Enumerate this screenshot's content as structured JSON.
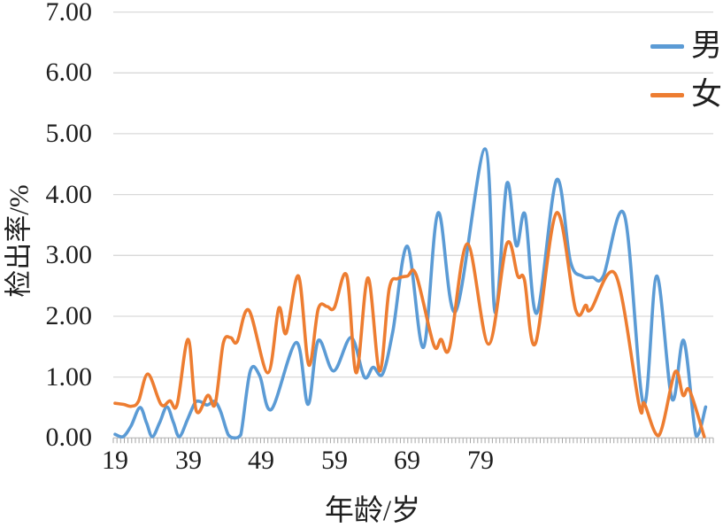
{
  "chart_data": {
    "type": "line",
    "title": "",
    "xlabel": "年龄/岁",
    "ylabel": "检出率/%",
    "ylim": [
      0,
      7
    ],
    "y_tick_labels": [
      "0.00",
      "1.00",
      "2.00",
      "3.00",
      "4.00",
      "5.00",
      "6.00",
      "7.00"
    ],
    "x_tick_labels": [
      "19",
      "39",
      "49",
      "59",
      "69",
      "79"
    ],
    "x_tick_indices": [
      0,
      10,
      20,
      30,
      40,
      50
    ],
    "x_index_range": [
      0,
      81
    ],
    "grid": "horizontal",
    "legend_position": "top-right",
    "gridline_color": "#D9D9D9",
    "axis_color": "#C6C6C6",
    "tick_color": "#A6A6A6",
    "text_color": "#1f1f1f",
    "line_style": "smoothed",
    "series": [
      {
        "name": "男",
        "color": "#5B9BD5",
        "points": [
          [
            0,
            0.06
          ],
          [
            1.1,
            0.02
          ],
          [
            2.2,
            0.2
          ],
          [
            3.4,
            0.5
          ],
          [
            4.3,
            0.25
          ],
          [
            5.1,
            0.02
          ],
          [
            6.1,
            0.25
          ],
          [
            7.1,
            0.51
          ],
          [
            8,
            0.25
          ],
          [
            8.8,
            0.02
          ],
          [
            9.9,
            0.3
          ],
          [
            10.9,
            0.57
          ],
          [
            11.6,
            0.6
          ],
          [
            12.6,
            0.54
          ],
          [
            13.6,
            0.6
          ],
          [
            14.4,
            0.45
          ],
          [
            15.5,
            0.05
          ],
          [
            16.4,
            0
          ],
          [
            17.2,
            0.05
          ],
          [
            18.5,
            1.1
          ],
          [
            19.8,
            1.02
          ],
          [
            21.4,
            0.47
          ],
          [
            24.8,
            1.57
          ],
          [
            26.4,
            0.55
          ],
          [
            27.8,
            1.6
          ],
          [
            29.9,
            1.1
          ],
          [
            32.3,
            1.65
          ],
          [
            34.1,
            1.0
          ],
          [
            35.3,
            1.16
          ],
          [
            36.6,
            1.05
          ],
          [
            38,
            1.75
          ],
          [
            40,
            3.15
          ],
          [
            42.2,
            1.49
          ],
          [
            44.2,
            3.7
          ],
          [
            46.6,
            2.08
          ],
          [
            50.6,
            4.75
          ],
          [
            52,
            2.06
          ],
          [
            53.6,
            4.18
          ],
          [
            54.9,
            3.16
          ],
          [
            56.1,
            3.67
          ],
          [
            57.7,
            2.05
          ],
          [
            60.4,
            4.24
          ],
          [
            62.3,
            2.9
          ],
          [
            63.9,
            2.66
          ],
          [
            65.3,
            2.64
          ],
          [
            66.8,
            2.66
          ],
          [
            69.7,
            3.66
          ],
          [
            72.3,
            0.55
          ],
          [
            74.1,
            2.66
          ],
          [
            76.2,
            0.64
          ],
          [
            77.8,
            1.6
          ],
          [
            79.5,
            0.03
          ],
          [
            80.8,
            0.51
          ]
        ]
      },
      {
        "name": "女",
        "color": "#ED7D31",
        "points": [
          [
            0,
            0.57
          ],
          [
            1.2,
            0.55
          ],
          [
            2.2,
            0.52
          ],
          [
            3.2,
            0.6
          ],
          [
            4.5,
            1.05
          ],
          [
            6.3,
            0.55
          ],
          [
            7.5,
            0.61
          ],
          [
            8.5,
            0.55
          ],
          [
            10,
            1.62
          ],
          [
            11.1,
            0.45
          ],
          [
            12.7,
            0.7
          ],
          [
            13.7,
            0.56
          ],
          [
            14.8,
            1.55
          ],
          [
            15.8,
            1.65
          ],
          [
            16.7,
            1.58
          ],
          [
            18.3,
            2.1
          ],
          [
            20.9,
            1.07
          ],
          [
            22.4,
            2.13
          ],
          [
            23.4,
            1.72
          ],
          [
            25.1,
            2.66
          ],
          [
            26.5,
            1.2
          ],
          [
            27.8,
            2.12
          ],
          [
            29,
            2.16
          ],
          [
            30,
            2.14
          ],
          [
            31.7,
            2.67
          ],
          [
            33,
            1.07
          ],
          [
            34.6,
            2.63
          ],
          [
            36.2,
            1.1
          ],
          [
            37.5,
            2.45
          ],
          [
            38.7,
            2.62
          ],
          [
            40,
            2.66
          ],
          [
            41.2,
            2.68
          ],
          [
            43.6,
            1.53
          ],
          [
            44.6,
            1.62
          ],
          [
            45.8,
            1.5
          ],
          [
            48.2,
            3.19
          ],
          [
            51.1,
            1.54
          ],
          [
            53.6,
            3.19
          ],
          [
            55.1,
            2.66
          ],
          [
            56,
            2.6
          ],
          [
            57.5,
            1.55
          ],
          [
            60.4,
            3.7
          ],
          [
            63,
            2.11
          ],
          [
            64.4,
            2.18
          ],
          [
            65.1,
            2.11
          ],
          [
            68.5,
            2.68
          ],
          [
            71.7,
            0.54
          ],
          [
            72.4,
            0.57
          ],
          [
            74.4,
            0.04
          ],
          [
            76.6,
            1.08
          ],
          [
            77.7,
            0.7
          ],
          [
            78.6,
            0.78
          ],
          [
            80.6,
            0.02
          ]
        ]
      }
    ]
  }
}
